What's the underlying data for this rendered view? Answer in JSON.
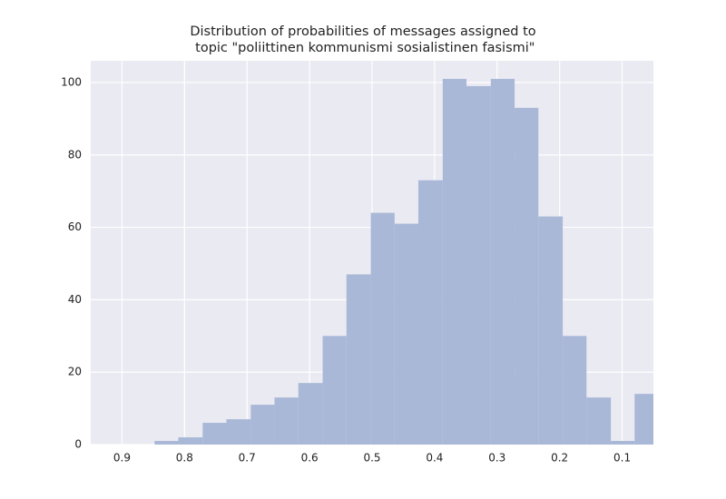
{
  "chart_data": {
    "type": "histogram",
    "title": "Distribution of probabilities of messages assigned to\n topic \"poliittinen kommunismi sosialistinen fasismi\"",
    "bins": [
      0.848,
      0.81,
      0.771,
      0.733,
      0.694,
      0.656,
      0.618,
      0.579,
      0.541,
      0.502,
      0.464,
      0.426,
      0.387,
      0.349,
      0.31,
      0.272,
      0.234,
      0.195,
      0.157,
      0.118,
      0.08,
      0.042
    ],
    "values": [
      1,
      2,
      6,
      7,
      11,
      13,
      17,
      30,
      47,
      64,
      61,
      73,
      101,
      99,
      101,
      93,
      63,
      30,
      13,
      1,
      14
    ],
    "color": "#a9b8d7",
    "xlim": [
      0.95,
      0.05
    ],
    "xticks": [
      0.9,
      0.8,
      0.7,
      0.6,
      0.5,
      0.4,
      0.3,
      0.2,
      0.1
    ],
    "ylim": [
      0,
      106
    ],
    "yticks": [
      0,
      20,
      40,
      60,
      80,
      100
    ],
    "grid": true
  }
}
